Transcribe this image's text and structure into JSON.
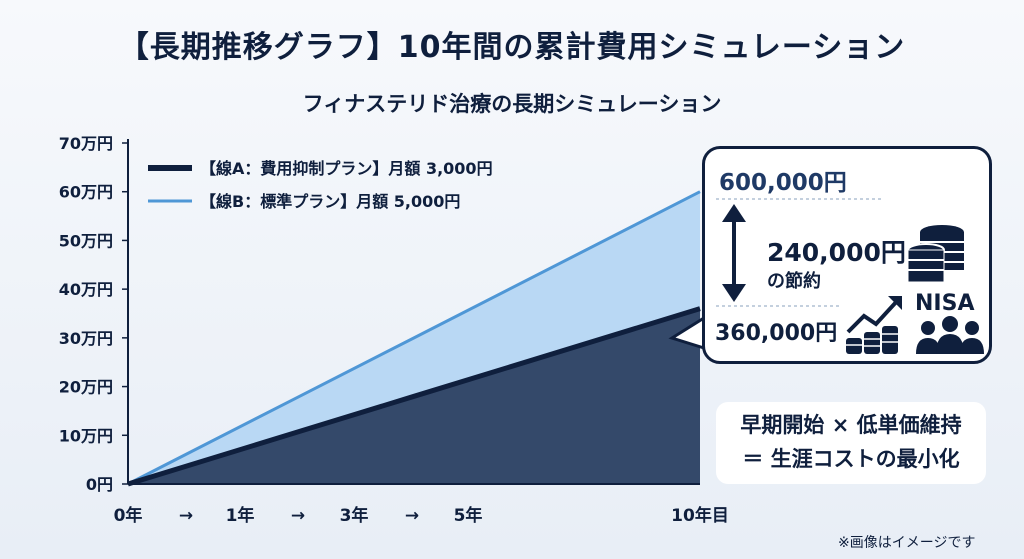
{
  "title": "【長期推移グラフ】10年間の累計費用シミュレーション",
  "subtitle": "フィナステリド治療の長期シミュレーション",
  "colors": {
    "line_a": "#0f1f3d",
    "area_a": "#34496a",
    "line_b": "#4f97d6",
    "area_b": "#b9d8f4"
  },
  "chart_data": {
    "type": "area",
    "title": "フィナステリド治療の長期シミュレーション",
    "x": [
      0,
      1,
      3,
      5,
      10
    ],
    "xlabels": [
      "0年",
      "1年",
      "3年",
      "5年",
      "10年目"
    ],
    "x_arrows": [
      "→",
      "→",
      "→"
    ],
    "ylim": [
      0,
      70
    ],
    "yticks": [
      "0円",
      "10万円",
      "20万円",
      "30万円",
      "40万円",
      "50万円",
      "60万円",
      "70万円"
    ],
    "ytick_values": [
      0,
      10,
      20,
      30,
      40,
      50,
      60,
      70
    ],
    "y_unit": "万円",
    "grid": false,
    "legend_position": "top-left",
    "series": [
      {
        "name": "【線A：費用抑制プラン】月額 3,000円",
        "values": [
          0,
          3.6,
          10.8,
          18,
          36
        ]
      },
      {
        "name": "【線B：標準プラン】月額 5,000円",
        "values": [
          0,
          6,
          18,
          30,
          60
        ]
      }
    ]
  },
  "callout": {
    "top_value": "600,000円",
    "bottom_value": "360,000円",
    "savings_value": "240,000円",
    "savings_label": "の節約",
    "nisa_label": "NISA",
    "icons": [
      "coin-stack-icon",
      "growth-chart-icon",
      "coins-icon",
      "people-icon"
    ]
  },
  "message": {
    "line1": "早期開始 × 低単価維持",
    "line2": "＝ 生涯コストの最小化"
  },
  "footnote": "※画像はイメージです"
}
